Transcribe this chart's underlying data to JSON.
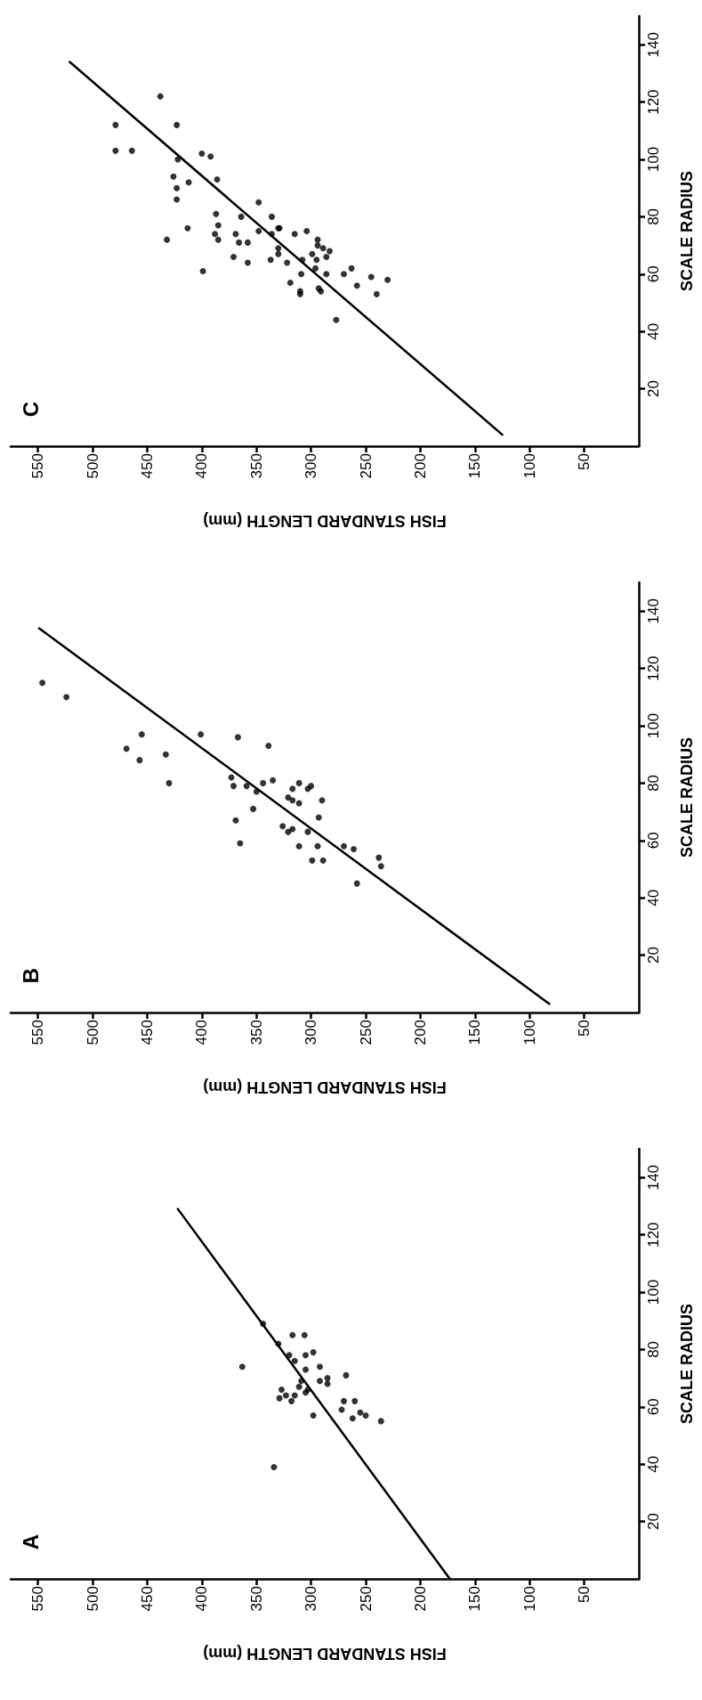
{
  "chart_data": [
    {
      "type": "scatter",
      "title": "C",
      "xlabel": "FISH STANDARD LENGTH (mm)",
      "ylabel": "SCALE RADIUS",
      "xlim": [
        575,
        0
      ],
      "ylim": [
        0,
        150
      ],
      "xticks": [
        550,
        500,
        450,
        400,
        350,
        300,
        250,
        200,
        150,
        100,
        50
      ],
      "yticks": [
        20,
        40,
        60,
        80,
        100,
        120,
        140
      ],
      "marker": "circle",
      "series": [
        {
          "color": "#000000",
          "x": [
            438,
            479,
            423,
            479,
            464,
            422,
            400,
            392,
            426,
            423,
            423,
            412,
            386,
            432,
            413,
            387,
            385,
            388,
            385,
            399,
            369,
            366,
            358,
            371,
            358,
            364,
            348,
            348,
            336,
            330,
            336,
            330,
            337,
            330,
            322,
            319,
            329,
            315,
            308,
            309,
            310,
            310,
            304,
            294,
            294,
            289,
            286,
            299,
            295,
            296,
            286,
            291,
            293,
            277,
            283,
            270,
            263,
            245,
            258,
            240,
            230
          ],
          "values": [
            122,
            112,
            112,
            103,
            103,
            100,
            102,
            101,
            94,
            90,
            86,
            92,
            93,
            72,
            76,
            81,
            77,
            74,
            72,
            61,
            74,
            71,
            71,
            66,
            64,
            80,
            85,
            75,
            80,
            76,
            74,
            69,
            65,
            67,
            64,
            57,
            76,
            74,
            65,
            60,
            53,
            54,
            75,
            72,
            70,
            69,
            66,
            67,
            65,
            62,
            60,
            54,
            55,
            44,
            68,
            60,
            62,
            59,
            56,
            53,
            58
          ]
        },
        {
          "type": "line",
          "color": "#000000",
          "marker": "none",
          "x": [
            125,
            521
          ],
          "values": [
            4,
            134
          ]
        }
      ]
    },
    {
      "type": "scatter",
      "title": "B",
      "xlabel": "FISH STANDARD LENGTH (mm)",
      "ylabel": "SCALE RADIUS",
      "xlim": [
        575,
        0
      ],
      "ylim": [
        0,
        150
      ],
      "xticks": [
        550,
        500,
        450,
        400,
        350,
        300,
        250,
        200,
        150,
        100,
        50
      ],
      "yticks": [
        20,
        40,
        60,
        80,
        100,
        120,
        140
      ],
      "marker": "circle",
      "series": [
        {
          "color": "#000000",
          "x": [
            546,
            524,
            455,
            469,
            457,
            433,
            430,
            401,
            367,
            339,
            373,
            371,
            359,
            350,
            344,
            335,
            353,
            369,
            365,
            321,
            317,
            317,
            311,
            303,
            300,
            311,
            290,
            293,
            326,
            321,
            317,
            303,
            311,
            294,
            299,
            289,
            270,
            261,
            258,
            238,
            236
          ],
          "values": [
            115,
            110,
            97,
            92,
            88,
            90,
            80,
            97,
            96,
            93,
            82,
            79,
            79,
            77,
            80,
            81,
            71,
            67,
            59,
            75,
            74,
            78,
            80,
            78,
            79,
            73,
            74,
            68,
            65,
            63,
            64,
            63,
            58,
            58,
            53,
            53,
            58,
            57,
            45,
            54,
            51
          ]
        },
        {
          "type": "line",
          "color": "#000000",
          "marker": "none",
          "x": [
            82,
            549
          ],
          "values": [
            3,
            134
          ]
        }
      ]
    },
    {
      "type": "scatter",
      "title": "A",
      "xlabel": "FISH STANDARD LENGTH (mm)",
      "ylabel": "SCALE RADIUS",
      "xlim": [
        575,
        0
      ],
      "ylim": [
        0,
        150
      ],
      "xticks": [
        550,
        500,
        450,
        400,
        350,
        300,
        250,
        200,
        150,
        100,
        50
      ],
      "yticks": [
        20,
        40,
        60,
        80,
        100,
        120,
        140
      ],
      "marker": "circle",
      "series": [
        {
          "color": "#000000",
          "x": [
            344,
            363,
            330,
            317,
            306,
            320,
            315,
            305,
            298,
            305,
            292,
            285,
            285,
            268,
            292,
            309,
            311,
            305,
            303,
            327,
            329,
            323,
            318,
            315,
            298,
            272,
            270,
            262,
            334,
            260,
            255,
            250,
            236
          ],
          "values": [
            89,
            74,
            82,
            85,
            85,
            78,
            76,
            78,
            79,
            73,
            74,
            70,
            68,
            71,
            69,
            69,
            67,
            65,
            66,
            66,
            63,
            64,
            62,
            64,
            57,
            59,
            62,
            56,
            39,
            62,
            58,
            57,
            55
          ]
        },
        {
          "type": "line",
          "color": "#000000",
          "marker": "none",
          "x": [
            173,
            422
          ],
          "values": [
            0,
            129
          ]
        }
      ]
    }
  ]
}
